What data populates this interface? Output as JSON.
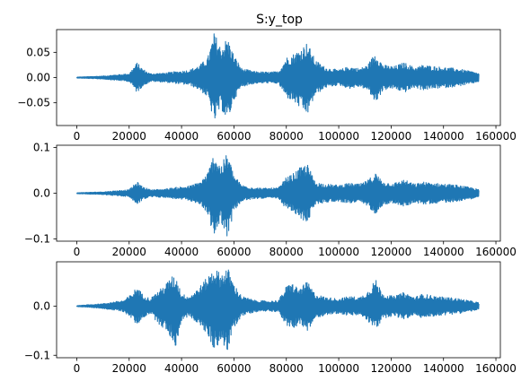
{
  "figure": {
    "title": "S:y_top",
    "line_color": "#1f77b4"
  },
  "chart_data": [
    {
      "type": "line",
      "title": "S:y_top",
      "xlabel": "",
      "ylabel": "",
      "xlim": [
        -7700,
        161700
      ],
      "ylim": [
        -0.095,
        0.095
      ],
      "x_ticks": [
        0,
        20000,
        40000,
        60000,
        80000,
        100000,
        120000,
        140000,
        160000
      ],
      "x_tick_labels": [
        "0",
        "20000",
        "40000",
        "60000",
        "80000",
        "100000",
        "120000",
        "140000",
        "160000"
      ],
      "y_ticks": [
        -0.05,
        0.0,
        0.05
      ],
      "y_tick_labels": [
        "−0.05",
        "0.00",
        "0.05"
      ],
      "grid": false,
      "envelope": {
        "x": [
          0,
          10000,
          20000,
          23000,
          25000,
          28000,
          33000,
          38000,
          43000,
          47000,
          50000,
          52500,
          55000,
          57500,
          60000,
          63000,
          68000,
          73000,
          77000,
          80000,
          82000,
          85000,
          88000,
          91000,
          95000,
          100000,
          104000,
          108000,
          111000,
          114000,
          117000,
          121000,
          125000,
          129000,
          132000,
          137000,
          141000,
          145000,
          148000,
          151000,
          153500
        ],
        "upper": [
          0.001,
          0.003,
          0.008,
          0.03,
          0.018,
          0.008,
          0.009,
          0.012,
          0.015,
          0.025,
          0.04,
          0.09,
          0.06,
          0.08,
          0.045,
          0.018,
          0.012,
          0.011,
          0.012,
          0.04,
          0.045,
          0.055,
          0.07,
          0.035,
          0.02,
          0.015,
          0.022,
          0.018,
          0.025,
          0.05,
          0.025,
          0.022,
          0.03,
          0.02,
          0.025,
          0.022,
          0.02,
          0.018,
          0.015,
          0.012,
          0.008
        ],
        "lower": [
          -0.001,
          -0.003,
          -0.008,
          -0.03,
          -0.018,
          -0.008,
          -0.009,
          -0.012,
          -0.015,
          -0.025,
          -0.04,
          -0.09,
          -0.06,
          -0.09,
          -0.045,
          -0.018,
          -0.012,
          -0.011,
          -0.012,
          -0.04,
          -0.045,
          -0.06,
          -0.075,
          -0.035,
          -0.02,
          -0.015,
          -0.022,
          -0.018,
          -0.025,
          -0.05,
          -0.025,
          -0.022,
          -0.03,
          -0.02,
          -0.025,
          -0.022,
          -0.02,
          -0.018,
          -0.015,
          -0.012,
          -0.008
        ]
      }
    },
    {
      "type": "line",
      "title": "",
      "xlabel": "",
      "ylabel": "",
      "xlim": [
        -7700,
        161700
      ],
      "ylim": [
        -0.105,
        0.105
      ],
      "x_ticks": [
        0,
        20000,
        40000,
        60000,
        80000,
        100000,
        120000,
        140000,
        160000
      ],
      "x_tick_labels": [
        "0",
        "20000",
        "40000",
        "60000",
        "80000",
        "100000",
        "120000",
        "140000",
        "160000"
      ],
      "y_ticks": [
        -0.1,
        0.0,
        0.1
      ],
      "y_tick_labels": [
        "−0.1",
        "0.0",
        "0.1"
      ],
      "grid": false,
      "envelope": {
        "x": [
          0,
          10000,
          20000,
          23000,
          25000,
          28000,
          33000,
          38000,
          43000,
          47000,
          50000,
          52500,
          55000,
          57500,
          60000,
          63000,
          68000,
          73000,
          77000,
          80000,
          82000,
          85000,
          88000,
          91000,
          95000,
          100000,
          104000,
          108000,
          111000,
          114000,
          117000,
          121000,
          125000,
          129000,
          132000,
          137000,
          141000,
          145000,
          148000,
          151000,
          153500
        ],
        "upper": [
          0.001,
          0.003,
          0.008,
          0.025,
          0.015,
          0.008,
          0.009,
          0.013,
          0.016,
          0.025,
          0.045,
          0.09,
          0.06,
          0.09,
          0.04,
          0.018,
          0.012,
          0.011,
          0.012,
          0.035,
          0.04,
          0.055,
          0.065,
          0.025,
          0.02,
          0.018,
          0.022,
          0.02,
          0.028,
          0.045,
          0.025,
          0.022,
          0.03,
          0.02,
          0.025,
          0.022,
          0.02,
          0.018,
          0.015,
          0.012,
          0.008
        ],
        "lower": [
          -0.001,
          -0.003,
          -0.008,
          -0.025,
          -0.015,
          -0.008,
          -0.009,
          -0.013,
          -0.016,
          -0.025,
          -0.045,
          -0.1,
          -0.06,
          -0.1,
          -0.04,
          -0.018,
          -0.012,
          -0.011,
          -0.012,
          -0.035,
          -0.04,
          -0.055,
          -0.065,
          -0.025,
          -0.02,
          -0.018,
          -0.022,
          -0.02,
          -0.028,
          -0.045,
          -0.025,
          -0.022,
          -0.03,
          -0.02,
          -0.025,
          -0.022,
          -0.02,
          -0.018,
          -0.015,
          -0.012,
          -0.008
        ]
      }
    },
    {
      "type": "line",
      "title": "",
      "xlabel": "",
      "ylabel": "",
      "xlim": [
        -7700,
        161700
      ],
      "ylim": [
        -0.105,
        0.09
      ],
      "x_ticks": [
        0,
        20000,
        40000,
        60000,
        80000,
        100000,
        120000,
        140000,
        160000
      ],
      "x_tick_labels": [
        "0",
        "20000",
        "40000",
        "60000",
        "80000",
        "100000",
        "120000",
        "140000",
        "160000"
      ],
      "y_ticks": [
        -0.1,
        0.0
      ],
      "y_tick_labels": [
        "−0.1",
        "0.0"
      ],
      "grid": false,
      "envelope": {
        "x": [
          0,
          10000,
          18000,
          21000,
          23000,
          25000,
          28000,
          31000,
          34000,
          36000,
          38000,
          40000,
          43000,
          47000,
          50000,
          52500,
          55000,
          57500,
          60000,
          63000,
          68000,
          73000,
          77000,
          80000,
          82000,
          85000,
          88000,
          91000,
          95000,
          100000,
          104000,
          108000,
          111000,
          114000,
          117000,
          121000,
          125000,
          129000,
          132000,
          137000,
          141000,
          145000,
          148000,
          151000,
          153500
        ],
        "upper": [
          0.001,
          0.005,
          0.012,
          0.025,
          0.04,
          0.025,
          0.015,
          0.03,
          0.045,
          0.06,
          0.06,
          0.025,
          0.02,
          0.04,
          0.06,
          0.08,
          0.065,
          0.08,
          0.045,
          0.02,
          0.012,
          0.01,
          0.012,
          0.04,
          0.048,
          0.035,
          0.05,
          0.025,
          0.018,
          0.015,
          0.02,
          0.018,
          0.03,
          0.055,
          0.025,
          0.02,
          0.028,
          0.018,
          0.025,
          0.02,
          0.018,
          0.016,
          0.013,
          0.01,
          0.007
        ],
        "lower": [
          -0.001,
          -0.005,
          -0.012,
          -0.025,
          -0.04,
          -0.025,
          -0.015,
          -0.035,
          -0.05,
          -0.065,
          -0.085,
          -0.03,
          -0.02,
          -0.04,
          -0.06,
          -0.09,
          -0.07,
          -0.095,
          -0.045,
          -0.02,
          -0.012,
          -0.01,
          -0.012,
          -0.04,
          -0.05,
          -0.035,
          -0.055,
          -0.025,
          -0.018,
          -0.015,
          -0.02,
          -0.018,
          -0.03,
          -0.05,
          -0.025,
          -0.02,
          -0.028,
          -0.018,
          -0.025,
          -0.02,
          -0.018,
          -0.016,
          -0.013,
          -0.01,
          -0.007
        ]
      }
    }
  ]
}
